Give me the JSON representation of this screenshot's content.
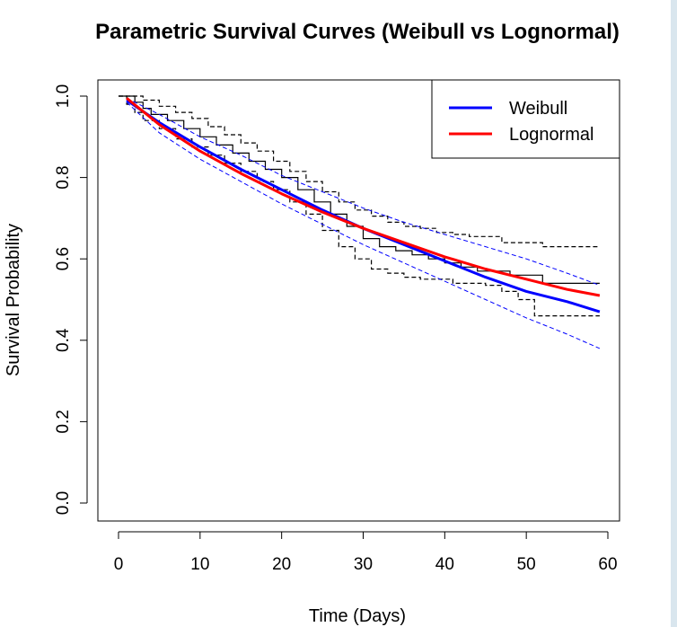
{
  "chart_data": {
    "type": "line",
    "title": "Parametric Survival Curves (Weibull vs Lognormal)",
    "xlabel": "Time (Days)",
    "ylabel": "Survival Probability",
    "xlim": [
      0,
      60
    ],
    "ylim": [
      0,
      1
    ],
    "x_ticks": [
      "0",
      "10",
      "20",
      "30",
      "40",
      "50",
      "60"
    ],
    "y_ticks": [
      "0.0",
      "0.2",
      "0.4",
      "0.6",
      "0.8",
      "1.0"
    ],
    "grid": false,
    "legend": {
      "placement": "top-right",
      "entries": [
        "Weibull",
        "Lognormal"
      ]
    },
    "kaplan_meier": {
      "color": "#000000",
      "estimate": [
        [
          0,
          1.0
        ],
        [
          1,
          1.0
        ],
        [
          2,
          0.985
        ],
        [
          3,
          0.97
        ],
        [
          4,
          0.955
        ],
        [
          6,
          0.94
        ],
        [
          8,
          0.92
        ],
        [
          10,
          0.9
        ],
        [
          12,
          0.88
        ],
        [
          14,
          0.86
        ],
        [
          16,
          0.84
        ],
        [
          18,
          0.82
        ],
        [
          20,
          0.8
        ],
        [
          22,
          0.77
        ],
        [
          24,
          0.74
        ],
        [
          26,
          0.71
        ],
        [
          28,
          0.68
        ],
        [
          30,
          0.65
        ],
        [
          32,
          0.63
        ],
        [
          34,
          0.62
        ],
        [
          36,
          0.61
        ],
        [
          38,
          0.6
        ],
        [
          40,
          0.59
        ],
        [
          42,
          0.58
        ],
        [
          44,
          0.57
        ],
        [
          46,
          0.57
        ],
        [
          48,
          0.56
        ],
        [
          52,
          0.54
        ],
        [
          59,
          0.54
        ]
      ],
      "upper": [
        [
          0,
          1.0
        ],
        [
          2,
          1.0
        ],
        [
          3,
          0.99
        ],
        [
          5,
          0.975
        ],
        [
          7,
          0.96
        ],
        [
          9,
          0.945
        ],
        [
          11,
          0.925
        ],
        [
          13,
          0.905
        ],
        [
          15,
          0.885
        ],
        [
          17,
          0.865
        ],
        [
          19,
          0.84
        ],
        [
          21,
          0.815
        ],
        [
          23,
          0.79
        ],
        [
          25,
          0.765
        ],
        [
          27,
          0.74
        ],
        [
          29,
          0.72
        ],
        [
          31,
          0.705
        ],
        [
          33,
          0.69
        ],
        [
          35,
          0.68
        ],
        [
          37,
          0.675
        ],
        [
          39,
          0.665
        ],
        [
          41,
          0.66
        ],
        [
          43,
          0.655
        ],
        [
          47,
          0.64
        ],
        [
          52,
          0.63
        ],
        [
          59,
          0.63
        ]
      ],
      "lower": [
        [
          0,
          1.0
        ],
        [
          1,
          0.98
        ],
        [
          2,
          0.96
        ],
        [
          3,
          0.94
        ],
        [
          5,
          0.92
        ],
        [
          7,
          0.895
        ],
        [
          9,
          0.875
        ],
        [
          11,
          0.855
        ],
        [
          13,
          0.835
        ],
        [
          15,
          0.815
        ],
        [
          17,
          0.79
        ],
        [
          19,
          0.77
        ],
        [
          21,
          0.74
        ],
        [
          23,
          0.71
        ],
        [
          25,
          0.67
        ],
        [
          27,
          0.63
        ],
        [
          29,
          0.6
        ],
        [
          31,
          0.575
        ],
        [
          33,
          0.565
        ],
        [
          35,
          0.555
        ],
        [
          37,
          0.55
        ],
        [
          41,
          0.54
        ],
        [
          45,
          0.535
        ],
        [
          47,
          0.52
        ],
        [
          49,
          0.5
        ],
        [
          51,
          0.46
        ],
        [
          59,
          0.46
        ]
      ]
    },
    "series": [
      {
        "name": "Weibull",
        "color": "#0000ff",
        "x": [
          1,
          5,
          10,
          15,
          20,
          25,
          30,
          35,
          40,
          45,
          50,
          55,
          59
        ],
        "y": [
          0.99,
          0.935,
          0.875,
          0.82,
          0.77,
          0.72,
          0.675,
          0.635,
          0.595,
          0.555,
          0.52,
          0.495,
          0.47
        ],
        "ci_upper": [
          0.995,
          0.955,
          0.9,
          0.855,
          0.805,
          0.765,
          0.725,
          0.69,
          0.66,
          0.63,
          0.6,
          0.565,
          0.535
        ],
        "ci_lower": [
          0.985,
          0.91,
          0.845,
          0.79,
          0.735,
          0.685,
          0.635,
          0.59,
          0.545,
          0.5,
          0.455,
          0.415,
          0.38
        ]
      },
      {
        "name": "Lognormal",
        "color": "#ff0000",
        "x": [
          1,
          5,
          10,
          15,
          20,
          25,
          30,
          35,
          40,
          45,
          50,
          55,
          59
        ],
        "y": [
          0.995,
          0.93,
          0.865,
          0.81,
          0.76,
          0.715,
          0.675,
          0.64,
          0.605,
          0.575,
          0.55,
          0.525,
          0.51
        ]
      }
    ]
  }
}
